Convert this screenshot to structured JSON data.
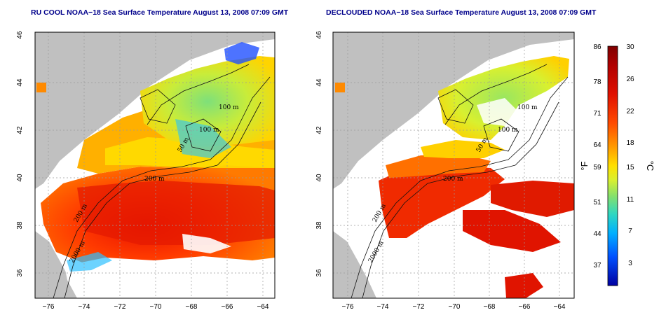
{
  "panels": [
    {
      "id": "left",
      "title": "RU COOL NOAA−18 Sea Surface Temperature August 13, 2008 07:09 GMT",
      "contour_labels": [
        "100 m",
        "100 m",
        "50 m",
        "200 m",
        "200 m",
        "2000 m"
      ]
    },
    {
      "id": "right",
      "title": "DECLOUDED NOAA−18 Sea Surface Temperature August 13, 2008 07:09 GMT",
      "contour_labels": [
        "100 m",
        "100 m",
        "50 m",
        "200 m",
        "200 m",
        "2000 m"
      ]
    }
  ],
  "x_ticks": [
    "−76",
    "−74",
    "−72",
    "−70",
    "−68",
    "−66",
    "−64"
  ],
  "y_ticks": [
    "46",
    "44",
    "42",
    "40",
    "38",
    "36"
  ],
  "colorbar": {
    "fahrenheit_ticks": [
      "86",
      "78",
      "71",
      "64",
      "59",
      "51",
      "44",
      "37"
    ],
    "celsius_ticks": [
      "30",
      "26",
      "22",
      "18",
      "15",
      "11",
      "7",
      "3"
    ],
    "fahrenheit_label": "°F",
    "celsius_label": "°C",
    "stops": [
      "#7f0000",
      "#d40000",
      "#ff3a00",
      "#ff8c00",
      "#ffd200",
      "#c8f020",
      "#6ee06e",
      "#20d8c8",
      "#00a0ff",
      "#0040ff",
      "#0000a0"
    ]
  },
  "colors": {
    "land": "#c0c0c0",
    "grid": "#9a9a9a",
    "frame": "#000000",
    "title": "#00008b"
  }
}
